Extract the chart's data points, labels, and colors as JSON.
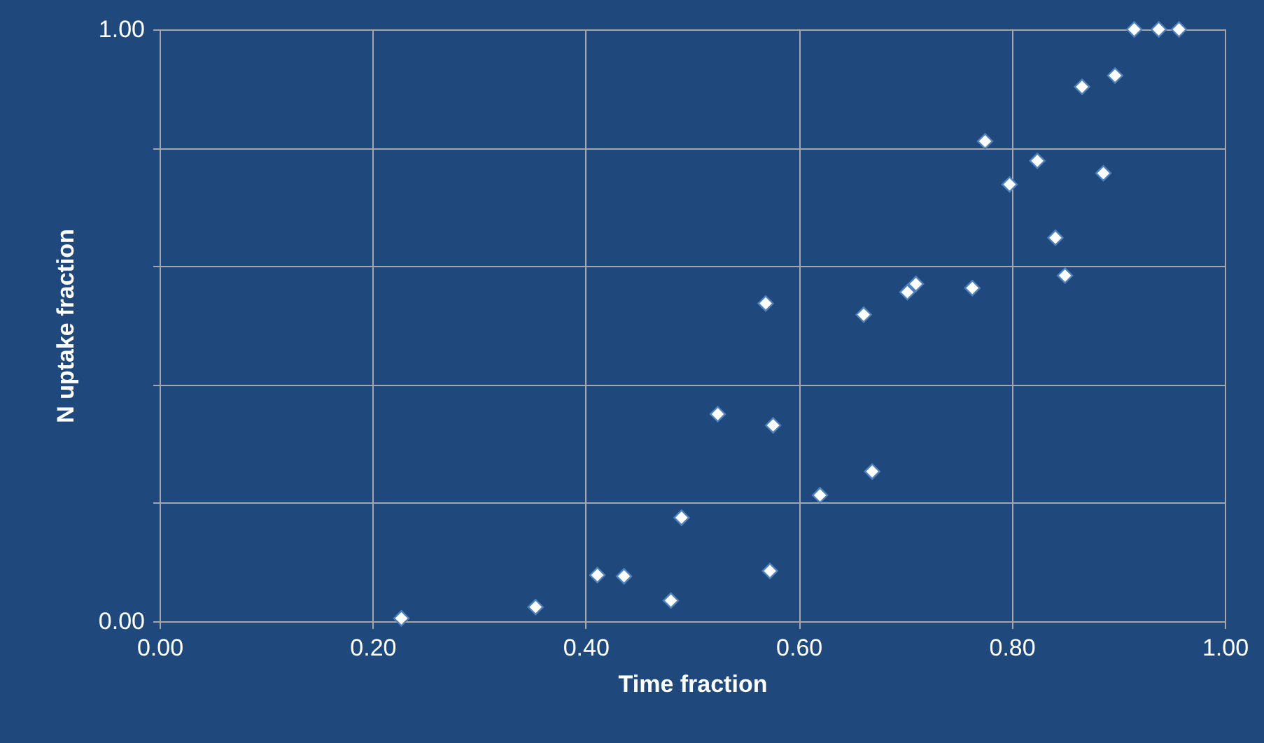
{
  "chart_data": {
    "type": "scatter",
    "xlabel": "Time fraction",
    "ylabel": "N uptake fraction",
    "x": [
      0.227,
      0.353,
      0.411,
      0.436,
      0.48,
      0.49,
      0.524,
      0.569,
      0.573,
      0.576,
      0.62,
      0.661,
      0.669,
      0.702,
      0.71,
      0.763,
      0.775,
      0.798,
      0.824,
      0.841,
      0.85,
      0.866,
      0.886,
      0.897,
      0.915,
      0.938,
      0.957
    ],
    "values": [
      0.005,
      0.024,
      0.078,
      0.076,
      0.035,
      0.175,
      0.35,
      0.537,
      0.085,
      0.331,
      0.213,
      0.518,
      0.253,
      0.556,
      0.57,
      0.563,
      0.811,
      0.738,
      0.778,
      0.648,
      0.584,
      0.903,
      0.757,
      0.922,
      1.0,
      1.0,
      1.0
    ],
    "color": "#ffffff",
    "xlim": [
      0,
      1
    ],
    "ylim": [
      0,
      1
    ],
    "xticks": [
      {
        "value": 0,
        "label": "0.00"
      },
      {
        "value": 0.2,
        "label": "0.20"
      },
      {
        "value": 0.4,
        "label": "0.40"
      },
      {
        "value": 0.6,
        "label": "0.60"
      },
      {
        "value": 0.8,
        "label": "0.80"
      },
      {
        "value": 1,
        "label": "1.00"
      }
    ],
    "yticks": [
      {
        "value": 0,
        "label": "0.00"
      },
      {
        "value": 0.2,
        "label": null
      },
      {
        "value": 0.4,
        "label": null
      },
      {
        "value": 0.6,
        "label": null
      },
      {
        "value": 0.8,
        "label": null
      },
      {
        "value": 1,
        "label": "1.00"
      }
    ],
    "marker": "diamond",
    "grid": true
  }
}
